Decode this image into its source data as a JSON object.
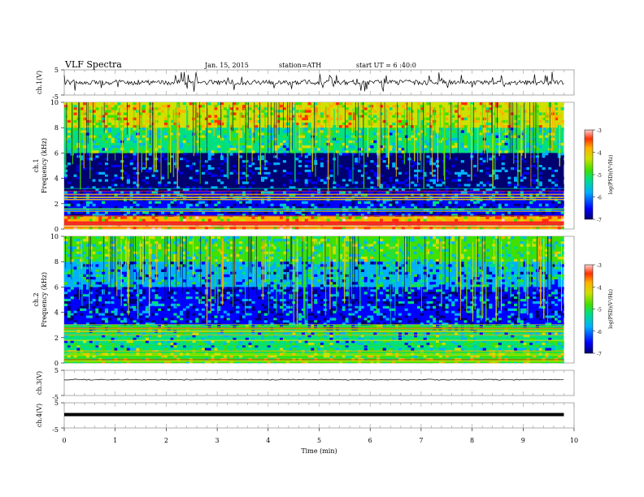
{
  "header": {
    "title": "VLF Spectra",
    "date": "Jan. 15, 2015",
    "station": "station=ATH",
    "start_ut": "start UT =  6 :40:0"
  },
  "colorbar": {
    "label": "log(PSD)(V²/Hz)",
    "ticks": [
      "-3",
      "-4",
      "-5",
      "-6",
      "-7"
    ],
    "range": [
      -7,
      -3
    ],
    "colors": [
      "#000070",
      "#0000ff",
      "#00b0ff",
      "#00e080",
      "#40e000",
      "#d0e000",
      "#ffb000",
      "#ff3000",
      "#ffd0d0"
    ]
  },
  "chart_data": [
    {
      "type": "line",
      "panel": "ch1",
      "ylabel": "ch.1(V)",
      "yticks": [
        "5",
        "-5"
      ],
      "ylim": [
        -5,
        5
      ],
      "x_range_min": [
        0,
        9.8
      ],
      "description": "noisy broadband signal with frequent impulsive spikes around 0 V"
    },
    {
      "type": "heatmap",
      "panel": "ch1-spectrogram",
      "ylabel_top": "ch.1",
      "ylabel": "Frequency  (kHz)",
      "yticks": [
        "10",
        "8",
        "6",
        "4",
        "2",
        "0"
      ],
      "ylim": [
        0,
        10
      ],
      "xlim": [
        0,
        9.8
      ],
      "zlim": [
        -7,
        -3
      ],
      "bands": [
        {
          "f_khz": [
            8,
            10
          ],
          "level": -4.5
        },
        {
          "f_khz": [
            6,
            8
          ],
          "level": -5.3
        },
        {
          "f_khz": [
            3,
            6
          ],
          "level": -6.6
        },
        {
          "f_khz": [
            1,
            3
          ],
          "level": -6.3
        },
        {
          "f_khz": [
            0,
            1
          ],
          "level": -4.2
        }
      ]
    },
    {
      "type": "heatmap",
      "panel": "ch2-spectrogram",
      "ylabel_top": "ch.2",
      "ylabel": "Frequency  (kHz)",
      "yticks": [
        "10",
        "8",
        "6",
        "4",
        "2",
        "0"
      ],
      "ylim": [
        0,
        10
      ],
      "xlim": [
        0,
        9.8
      ],
      "zlim": [
        -7,
        -3
      ],
      "bands": [
        {
          "f_khz": [
            8,
            10
          ],
          "level": -5.2
        },
        {
          "f_khz": [
            6,
            8
          ],
          "level": -5.8
        },
        {
          "f_khz": [
            3,
            6
          ],
          "level": -6.3
        },
        {
          "f_khz": [
            1,
            3
          ],
          "level": -5.5
        },
        {
          "f_khz": [
            0,
            1
          ],
          "level": -4.8
        }
      ]
    },
    {
      "type": "line",
      "panel": "ch3",
      "ylabel": "ch.3(V)",
      "yticks": [
        "5",
        "-5"
      ],
      "ylim": [
        -5,
        5
      ],
      "description": "flat trace near 0 V"
    },
    {
      "type": "line",
      "panel": "ch4",
      "ylabel": "ch.4(V)",
      "yticks": [
        "5",
        "-5"
      ],
      "ylim": [
        -5,
        5
      ],
      "description": "thick flat trace near 0 V"
    }
  ],
  "xaxis": {
    "label": "Time  (min)",
    "ticks": [
      "0",
      "1",
      "2",
      "3",
      "4",
      "5",
      "6",
      "7",
      "8",
      "9",
      "10"
    ],
    "xlim": [
      0,
      10
    ]
  }
}
